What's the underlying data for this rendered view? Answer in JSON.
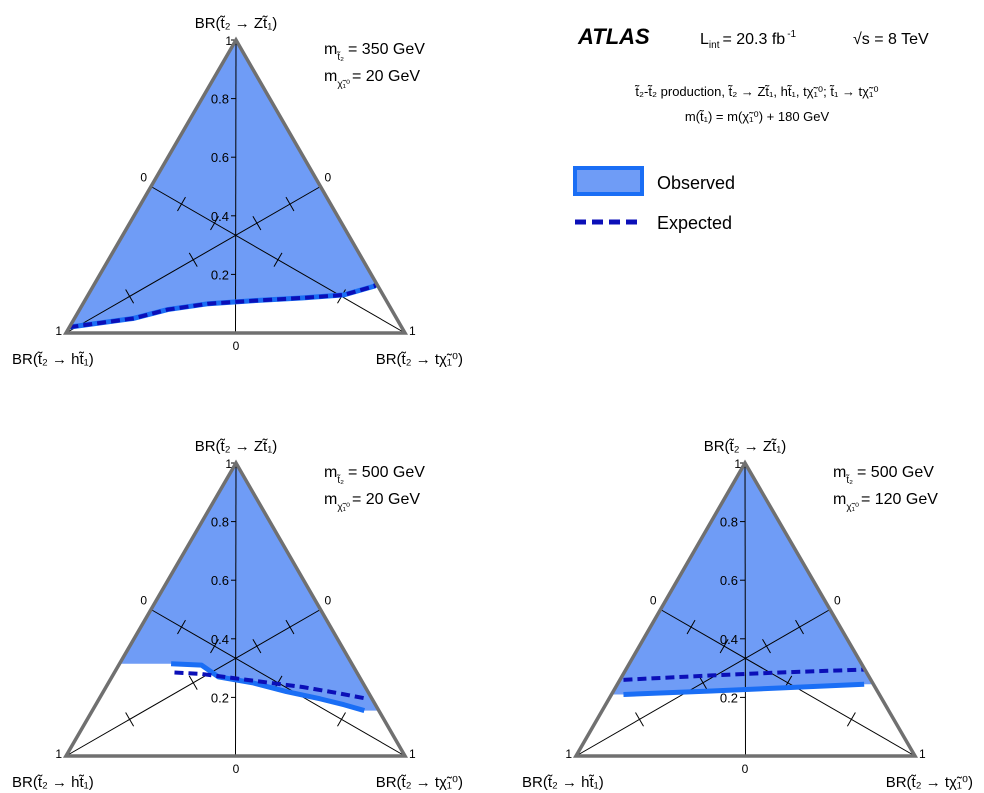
{
  "colors": {
    "fill": "#6f9cf6",
    "observed_line": "#1a6ef5",
    "expected_line": "#0b0fb8",
    "frame": "#707070"
  },
  "header": {
    "experiment": "ATLAS",
    "lumi_prefix": "L",
    "lumi_sub": "int",
    "lumi_value": "= 20.3 fb",
    "lumi_sup": "-1",
    "energy": "√s = 8 TeV",
    "process_line": "t̃₂-t̃₂ production, t̃₂ → Zt̃₁, ht̃₁, tχ̃₁⁰; t̃₁ → tχ̃₁⁰",
    "mass_line": "m(t̃₁) = m(χ̃₁⁰) + 180 GeV"
  },
  "legend": [
    {
      "label": "Observed",
      "style": "filled-box"
    },
    {
      "label": "Expected",
      "style": "dashed-line"
    }
  ],
  "chart_data": [
    {
      "type": "ternary",
      "corner_labels": {
        "top": "BR(t̃₂ → Zt̃₁)",
        "left": "BR(t̃₂ → ht̃₁)",
        "right": "BR(t̃₂ → tχ̃₁⁰)"
      },
      "mass_stop2": "= 350 GeV",
      "mass_lsp": "= 20 GeV",
      "vertical_ticks": [
        "0.2",
        "0.4",
        "0.6",
        "0.8",
        "1"
      ],
      "edge_labels": {
        "top_one": "1",
        "left_one": "1",
        "right_one": "1",
        "bottom_zero": "0",
        "left_zero": "0",
        "right_zero": "0"
      },
      "excluded_region": "above",
      "observed": [
        [
          0.01,
          0.02
        ],
        [
          0.2,
          0.05
        ],
        [
          0.3,
          0.08
        ],
        [
          0.42,
          0.1
        ],
        [
          0.55,
          0.11
        ],
        [
          0.7,
          0.12
        ],
        [
          0.82,
          0.13
        ],
        [
          0.91,
          0.16
        ],
        [
          0.95,
          0.21
        ]
      ],
      "expected": [
        [
          0.01,
          0.02
        ],
        [
          0.2,
          0.05
        ],
        [
          0.3,
          0.08
        ],
        [
          0.42,
          0.1
        ],
        [
          0.55,
          0.11
        ],
        [
          0.7,
          0.12
        ],
        [
          0.82,
          0.13
        ],
        [
          0.91,
          0.16
        ],
        [
          0.95,
          0.21
        ]
      ]
    },
    {
      "type": "ternary",
      "corner_labels": {
        "top": "BR(t̃₂ → Zt̃₁)",
        "left": "BR(t̃₂ → ht̃₁)",
        "right": "BR(t̃₂ → tχ̃₁⁰)"
      },
      "mass_stop2": "= 500 GeV",
      "mass_lsp": "= 20 GeV",
      "vertical_ticks": [
        "0.2",
        "0.4",
        "0.6",
        "0.8",
        "1"
      ],
      "edge_labels": {
        "top_one": "1",
        "left_one": "1",
        "right_one": "1",
        "bottom_zero": "0",
        "left_zero": "0",
        "right_zero": "0"
      },
      "excluded_region": "above",
      "observed": [
        [
          0.31,
          0.315
        ],
        [
          0.4,
          0.31
        ],
        [
          0.45,
          0.27
        ],
        [
          0.55,
          0.25
        ],
        [
          0.65,
          0.22
        ],
        [
          0.75,
          0.195
        ],
        [
          0.82,
          0.175
        ],
        [
          0.88,
          0.155
        ]
      ],
      "expected": [
        [
          0.32,
          0.285
        ],
        [
          0.4,
          0.28
        ],
        [
          0.5,
          0.265
        ],
        [
          0.6,
          0.25
        ],
        [
          0.7,
          0.235
        ],
        [
          0.8,
          0.215
        ],
        [
          0.89,
          0.195
        ]
      ]
    },
    {
      "type": "ternary",
      "corner_labels": {
        "top": "BR(t̃₂ → Zt̃₁)",
        "left": "BR(t̃₂ → ht̃₁)",
        "right": "BR(t̃₂ → tχ̃₁⁰)"
      },
      "mass_stop2": "= 500 GeV",
      "mass_lsp": "= 120 GeV",
      "vertical_ticks": [
        "0.2",
        "0.4",
        "0.6",
        "0.8",
        "1"
      ],
      "edge_labels": {
        "top_one": "1",
        "left_one": "1",
        "right_one": "1",
        "bottom_zero": "0",
        "left_zero": "0",
        "right_zero": "0"
      },
      "excluded_region": "above",
      "observed": [
        [
          0.14,
          0.21
        ],
        [
          0.4,
          0.222
        ],
        [
          0.6,
          0.232
        ],
        [
          0.85,
          0.245
        ]
      ],
      "expected": [
        [
          0.14,
          0.26
        ],
        [
          0.4,
          0.275
        ],
        [
          0.6,
          0.285
        ],
        [
          0.85,
          0.295
        ]
      ]
    }
  ]
}
